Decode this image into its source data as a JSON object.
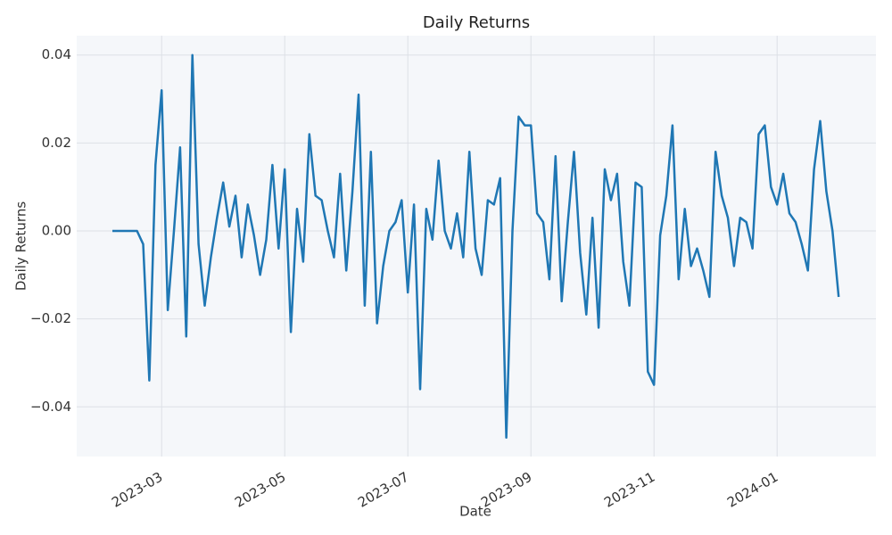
{
  "chart_data": {
    "type": "line",
    "title": "Daily Returns",
    "x_label": "Date",
    "y_label": "Daily Returns",
    "categories": [
      null,
      null,
      null,
      null,
      null,
      null,
      null,
      null,
      "2023-03",
      null,
      null,
      null,
      null,
      null,
      null,
      null,
      null,
      null,
      null,
      null,
      null,
      null,
      null,
      null,
      null,
      null,
      null,
      null,
      "2023-05",
      null,
      null,
      null,
      null,
      null,
      null,
      null,
      null,
      null,
      null,
      null,
      null,
      null,
      null,
      null,
      null,
      null,
      null,
      null,
      "2023-07",
      null,
      null,
      null,
      null,
      null,
      null,
      null,
      null,
      null,
      null,
      null,
      null,
      null,
      null,
      null,
      null,
      null,
      null,
      null,
      "2023-09",
      null,
      null,
      null,
      null,
      null,
      null,
      null,
      null,
      null,
      null,
      null,
      null,
      null,
      null,
      null,
      null,
      null,
      null,
      null,
      "2023-11",
      null,
      null,
      null,
      null,
      null,
      null,
      null,
      null,
      null,
      null,
      null,
      null,
      null,
      null,
      null,
      null,
      null,
      null,
      null,
      "2024-01",
      null,
      null,
      null,
      null,
      null,
      null,
      null,
      null,
      null,
      null
    ],
    "series": [
      {
        "name": "Daily Returns",
        "color": "#1f77b4",
        "values": [
          0,
          0,
          0,
          0,
          0,
          -0.003,
          -0.034,
          0.015,
          0.032,
          -0.018,
          0.0,
          0.019,
          -0.024,
          0.04,
          -0.003,
          -0.017,
          -0.006,
          0.003,
          0.011,
          0.001,
          0.008,
          -0.006,
          0.006,
          -0.001,
          -0.01,
          -0.002,
          0.015,
          -0.004,
          0.014,
          -0.023,
          0.005,
          -0.007,
          0.022,
          0.008,
          0.007,
          0.0,
          -0.006,
          0.013,
          -0.009,
          0.009,
          0.031,
          -0.017,
          0.018,
          -0.021,
          -0.008,
          0.0,
          0.002,
          0.007,
          -0.014,
          0.006,
          -0.036,
          0.005,
          -0.002,
          0.016,
          0.0,
          -0.004,
          0.004,
          -0.006,
          0.018,
          -0.004,
          -0.01,
          0.007,
          0.006,
          0.012,
          -0.047,
          0.0,
          0.026,
          0.024,
          0.024,
          0.004,
          0.002,
          -0.011,
          0.017,
          -0.016,
          0.002,
          0.018,
          -0.005,
          -0.019,
          0.003,
          -0.022,
          0.014,
          0.007,
          0.013,
          -0.007,
          -0.017,
          0.011,
          0.01,
          -0.032,
          -0.035,
          -0.001,
          0.008,
          0.024,
          -0.011,
          0.005,
          -0.008,
          -0.004,
          -0.009,
          -0.015,
          0.018,
          0.008,
          0.003,
          -0.008,
          0.003,
          0.002,
          -0.004,
          0.022,
          0.024,
          0.01,
          0.006,
          0.013,
          0.004,
          0.002,
          -0.003,
          -0.009,
          0.014,
          0.025,
          0.009,
          0.0,
          -0.015
        ]
      }
    ],
    "ylim": [
      -0.0513,
      0.0444
    ],
    "yticks": [
      {
        "value": -0.04,
        "label": "−0.04"
      },
      {
        "value": -0.02,
        "label": "−0.02"
      },
      {
        "value": 0,
        "label": "0.00"
      },
      0.02,
      0.04
    ],
    "grid": true
  }
}
